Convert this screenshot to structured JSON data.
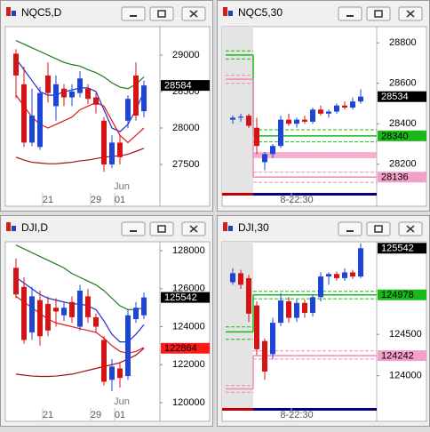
{
  "windows": [
    {
      "title": "NQC5,D",
      "chart": {
        "ylim": [
          27110,
          29390
        ],
        "yticks": [
          29000,
          28500,
          28000,
          27500
        ],
        "categories": [
          null,
          null,
          null,
          null,
          "21",
          null,
          null,
          null,
          null,
          null,
          "29",
          null,
          null,
          "01",
          null,
          null,
          null
        ],
        "month": "Jun",
        "candles": [
          [
            29020,
            29080,
            28410,
            28720
          ],
          [
            28600,
            28840,
            27740,
            27800
          ],
          [
            27800,
            28540,
            27750,
            28170
          ],
          [
            27740,
            28560,
            27700,
            28480
          ],
          [
            28720,
            28900,
            28350,
            28480
          ],
          [
            28300,
            28720,
            28100,
            28600
          ],
          [
            28540,
            28600,
            28300,
            28420
          ],
          [
            28420,
            28600,
            28300,
            28500
          ],
          [
            28480,
            28780,
            28420,
            28680
          ],
          [
            28540,
            28600,
            28330,
            28400
          ],
          [
            28420,
            28480,
            28200,
            28320
          ],
          [
            28100,
            28150,
            27400,
            27500
          ],
          [
            27500,
            27900,
            27450,
            27800
          ],
          [
            27800,
            27900,
            27500,
            27600
          ],
          [
            28100,
            28450,
            28000,
            28400
          ],
          [
            28720,
            28900,
            28100,
            28170
          ],
          [
            28230,
            28650,
            28150,
            28584
          ]
        ],
        "ma": [
          {
            "color": "#1a7a1a",
            "values": [
              29200,
              29150,
              29100,
              29050,
              29000,
              28950,
              28900,
              28870,
              28850,
              28800,
              28760,
              28700,
              28620,
              28560,
              28540,
              28600,
              28700
            ]
          },
          {
            "color": "#1f2fd0",
            "values": [
              28950,
              28800,
              28650,
              28500,
              28450,
              28450,
              28500,
              28520,
              28550,
              28550,
              28500,
              28250,
              28000,
              27950,
              28050,
              28250,
              28500
            ]
          },
          {
            "color": "#e01818",
            "values": [
              28450,
              28300,
              28150,
              28050,
              28000,
              28050,
              28100,
              28150,
              28250,
              28300,
              28350,
              28300,
              28100,
              27900,
              27800,
              27900,
              28000
            ]
          },
          {
            "color": "#a01010",
            "values": [
              27600,
              27560,
              27530,
              27520,
              27510,
              27510,
              27520,
              27530,
              27550,
              27560,
              27580,
              27600,
              27610,
              27620,
              27640,
              27680,
              27720
            ]
          }
        ],
        "tags": [
          {
            "value": 28584,
            "color": "#000000"
          }
        ]
      }
    },
    {
      "title": "NQC5,30",
      "chart": {
        "ylim": [
          28058,
          28880
        ],
        "yticks": [
          28800,
          28600,
          28400,
          28200
        ],
        "categories": [
          null,
          null,
          null,
          null,
          null,
          null,
          null,
          null,
          "8-22:30",
          null,
          null,
          null,
          null,
          null,
          null,
          null,
          null
        ],
        "candles": [
          [
            28420,
            28440,
            28400,
            28430
          ],
          [
            28430,
            28450,
            28410,
            28435
          ],
          [
            28440,
            28450,
            28380,
            28390
          ],
          [
            28380,
            28430,
            28250,
            28290
          ],
          [
            28210,
            28260,
            28170,
            28250
          ],
          [
            28250,
            28300,
            28230,
            28290
          ],
          [
            28290,
            28440,
            28280,
            28420
          ],
          [
            28420,
            28450,
            28390,
            28400
          ],
          [
            28400,
            28430,
            28380,
            28420
          ],
          [
            28420,
            28440,
            28400,
            28410
          ],
          [
            28410,
            28480,
            28400,
            28470
          ],
          [
            28470,
            28490,
            28440,
            28450
          ],
          [
            28450,
            28470,
            28430,
            28460
          ],
          [
            28460,
            28500,
            28450,
            28490
          ],
          [
            28490,
            28510,
            28470,
            28480
          ],
          [
            28480,
            28530,
            28470,
            28510
          ],
          [
            28510,
            28570,
            28500,
            28534
          ]
        ],
        "levels": [
          {
            "color": "#18b818",
            "before": [
              28760,
              28740,
              28720
            ],
            "after": [
              28370,
              28340,
              28310
            ]
          },
          {
            "color": "#f08ab8",
            "before": [
              28640,
              28620,
              28600
            ],
            "after": [
              28160,
              28136,
              28110
            ]
          }
        ],
        "band": [
          28230,
          28260
        ],
        "tags": [
          {
            "value": 28534,
            "color": "#000000"
          },
          {
            "value": 28340,
            "color": "#18b818"
          },
          {
            "value": 28136,
            "color": "#f3a0c8"
          }
        ]
      }
    },
    {
      "title": "DJI,D",
      "chart": {
        "ylim": [
          119716,
          128474
        ],
        "yticks": [
          128000,
          126000,
          124000,
          122000,
          120000
        ],
        "categories": [
          null,
          null,
          null,
          null,
          "21",
          null,
          null,
          null,
          null,
          null,
          "29",
          null,
          null,
          "01",
          null,
          null,
          null
        ],
        "month": "Jun",
        "candles": [
          [
            127100,
            127600,
            125500,
            125700
          ],
          [
            126100,
            126600,
            123100,
            123300
          ],
          [
            123700,
            126100,
            123300,
            125600
          ],
          [
            125400,
            125900,
            123000,
            123500
          ],
          [
            125200,
            125600,
            123500,
            123800
          ],
          [
            125000,
            125500,
            124000,
            124800
          ],
          [
            124600,
            125300,
            124300,
            125000
          ],
          [
            125300,
            125600,
            124200,
            124500
          ],
          [
            124000,
            126200,
            123800,
            125900
          ],
          [
            125600,
            126000,
            124200,
            124500
          ],
          [
            124500,
            124700,
            123700,
            124000
          ],
          [
            123300,
            123500,
            120900,
            121100
          ],
          [
            121200,
            122300,
            120600,
            121900
          ],
          [
            121800,
            122100,
            120800,
            121300
          ],
          [
            121400,
            124900,
            121200,
            124600
          ],
          [
            124400,
            125300,
            124200,
            125000
          ],
          [
            124600,
            125800,
            124400,
            125542
          ]
        ],
        "ma": [
          {
            "color": "#1a7a1a",
            "values": [
              128300,
              128100,
              127900,
              127700,
              127500,
              127300,
              127100,
              126800,
              126600,
              126400,
              126200,
              125900,
              125500,
              125100,
              124900,
              124900,
              125000
            ]
          },
          {
            "color": "#1f2fd0",
            "values": [
              126600,
              126300,
              126000,
              125700,
              125500,
              125400,
              125300,
              125200,
              125200,
              125100,
              124900,
              124300,
              123600,
              123200,
              123200,
              123600,
              124100
            ]
          },
          {
            "color": "#e01818",
            "values": [
              125600,
              125300,
              125000,
              124700,
              124400,
              124200,
              124100,
              124000,
              123900,
              123800,
              123700,
              123400,
              123000,
              122700,
              122600,
              122700,
              122900
            ]
          },
          {
            "color": "#a01010",
            "values": [
              121500,
              121450,
              121400,
              121380,
              121380,
              121400,
              121450,
              121500,
              121600,
              121700,
              121800,
              121900,
              122000,
              122100,
              122300,
              122500,
              122864
            ]
          }
        ],
        "tags": [
          {
            "value": 125542,
            "color": "#000000"
          },
          {
            "value": 122864,
            "color": "#ff1a1a"
          }
        ]
      }
    },
    {
      "title": "DJI,30",
      "chart": {
        "ylim": [
          123609,
          125620
        ],
        "yticks": [
          124500,
          124000
        ],
        "categories": [
          null,
          null,
          null,
          null,
          null,
          null,
          null,
          null,
          "8-22:30",
          null,
          null,
          null,
          null,
          null,
          null,
          null,
          null
        ],
        "candles": [
          [
            125130,
            125300,
            125100,
            125240
          ],
          [
            125240,
            125280,
            125050,
            125100
          ],
          [
            125180,
            125220,
            124650,
            124750
          ],
          [
            124850,
            124900,
            124250,
            124320
          ],
          [
            124420,
            124450,
            123950,
            124050
          ],
          [
            124260,
            124700,
            124200,
            124640
          ],
          [
            124640,
            125000,
            124600,
            124910
          ],
          [
            124900,
            124950,
            124640,
            124700
          ],
          [
            124700,
            124920,
            124650,
            124880
          ],
          [
            124880,
            124920,
            124700,
            124760
          ],
          [
            124760,
            124980,
            124720,
            124950
          ],
          [
            124950,
            125250,
            124900,
            125200
          ],
          [
            125200,
            125250,
            125100,
            125230
          ],
          [
            125230,
            125260,
            125150,
            125180
          ],
          [
            125180,
            125300,
            125150,
            125250
          ],
          [
            125250,
            125280,
            125170,
            125200
          ],
          [
            125200,
            125600,
            125180,
            125542
          ]
        ],
        "levels": [
          {
            "color": "#18b818",
            "before": [
              124590,
              124530,
              124440
            ],
            "after": [
              125020,
              124978,
              124930
            ]
          },
          {
            "color": "#f08ab8",
            "before": [
              123880,
              123840,
              123800
            ],
            "after": [
              124300,
              124242,
              124200
            ]
          }
        ],
        "tags": [
          {
            "value": 125542,
            "color": "#000000"
          },
          {
            "value": 124978,
            "color": "#18b818"
          },
          {
            "value": 124242,
            "color": "#f3a0c8"
          }
        ]
      }
    }
  ]
}
